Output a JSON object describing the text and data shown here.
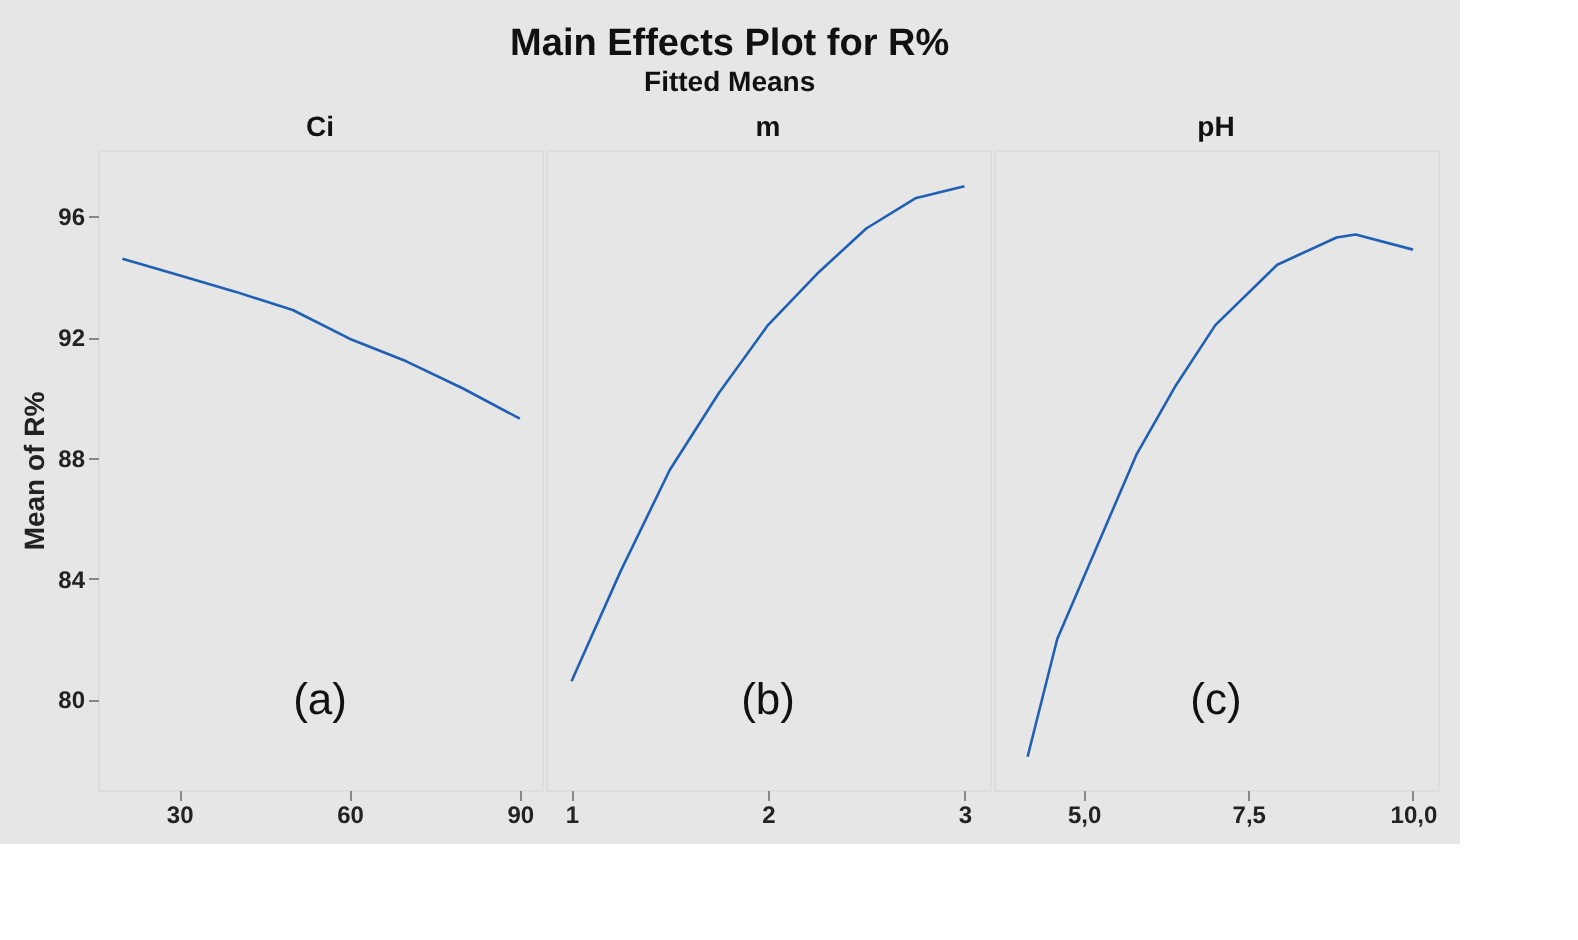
{
  "chart_data": [
    {
      "type": "other",
      "title": "Main Effects Plot for R%",
      "subtitle": "Fitted Means"
    },
    {
      "type": "line",
      "title": "Ci",
      "ylabel": "Mean of R%",
      "x": [
        20,
        30,
        40,
        50,
        60,
        70,
        80,
        90
      ],
      "series": [
        {
          "color": "#1f5fb4",
          "values": [
            94.6,
            94.05,
            93.5,
            92.9,
            91.95,
            91.2,
            90.3,
            89.3
          ]
        }
      ],
      "xlim": [
        15.7,
        93.9
      ],
      "xticks": [
        30,
        60,
        90
      ],
      "ylim": [
        77,
        98.2
      ],
      "yticks": [
        80,
        84,
        88,
        92,
        96
      ],
      "grid": false,
      "annotations": [
        "(a)"
      ]
    },
    {
      "type": "line",
      "title": "m",
      "x": [
        1,
        1.25,
        1.5,
        1.75,
        2,
        2.25,
        2.5,
        2.75,
        3
      ],
      "series": [
        {
          "color": "#1f5fb4",
          "values": [
            80.6,
            84.25,
            87.6,
            90.15,
            92.4,
            94.1,
            95.6,
            96.6,
            97.0
          ]
        }
      ],
      "xlim": [
        0.87,
        3.13
      ],
      "xticks": [
        1,
        2,
        3
      ],
      "ylim": [
        77,
        98.2
      ],
      "yticks": [
        80,
        84,
        88,
        92,
        96
      ],
      "tick_labels": "x",
      "grid": false,
      "annotations": [
        "(b)"
      ]
    },
    {
      "type": "line",
      "title": "pH",
      "x": [
        4.15,
        4.6,
        5.8,
        6.4,
        7.0,
        7.94,
        8.84,
        9.13,
        10.0
      ],
      "series": [
        {
          "color": "#1f5fb4",
          "values": [
            78.1,
            82.0,
            88.1,
            90.4,
            92.4,
            94.4,
            95.3,
            95.4,
            94.9
          ]
        }
      ],
      "xlim": [
        3.64,
        10.38
      ],
      "xticks": [
        {
          "value": 5,
          "label": "5,0"
        },
        {
          "value": 7.5,
          "label": "7,5"
        },
        {
          "value": 10,
          "label": "10,0"
        }
      ],
      "ylim": [
        77,
        98.2
      ],
      "yticks": [
        80,
        84,
        88,
        92,
        96
      ],
      "tick_labels": "x",
      "grid": false,
      "annotations": [
        "(c)"
      ]
    }
  ]
}
